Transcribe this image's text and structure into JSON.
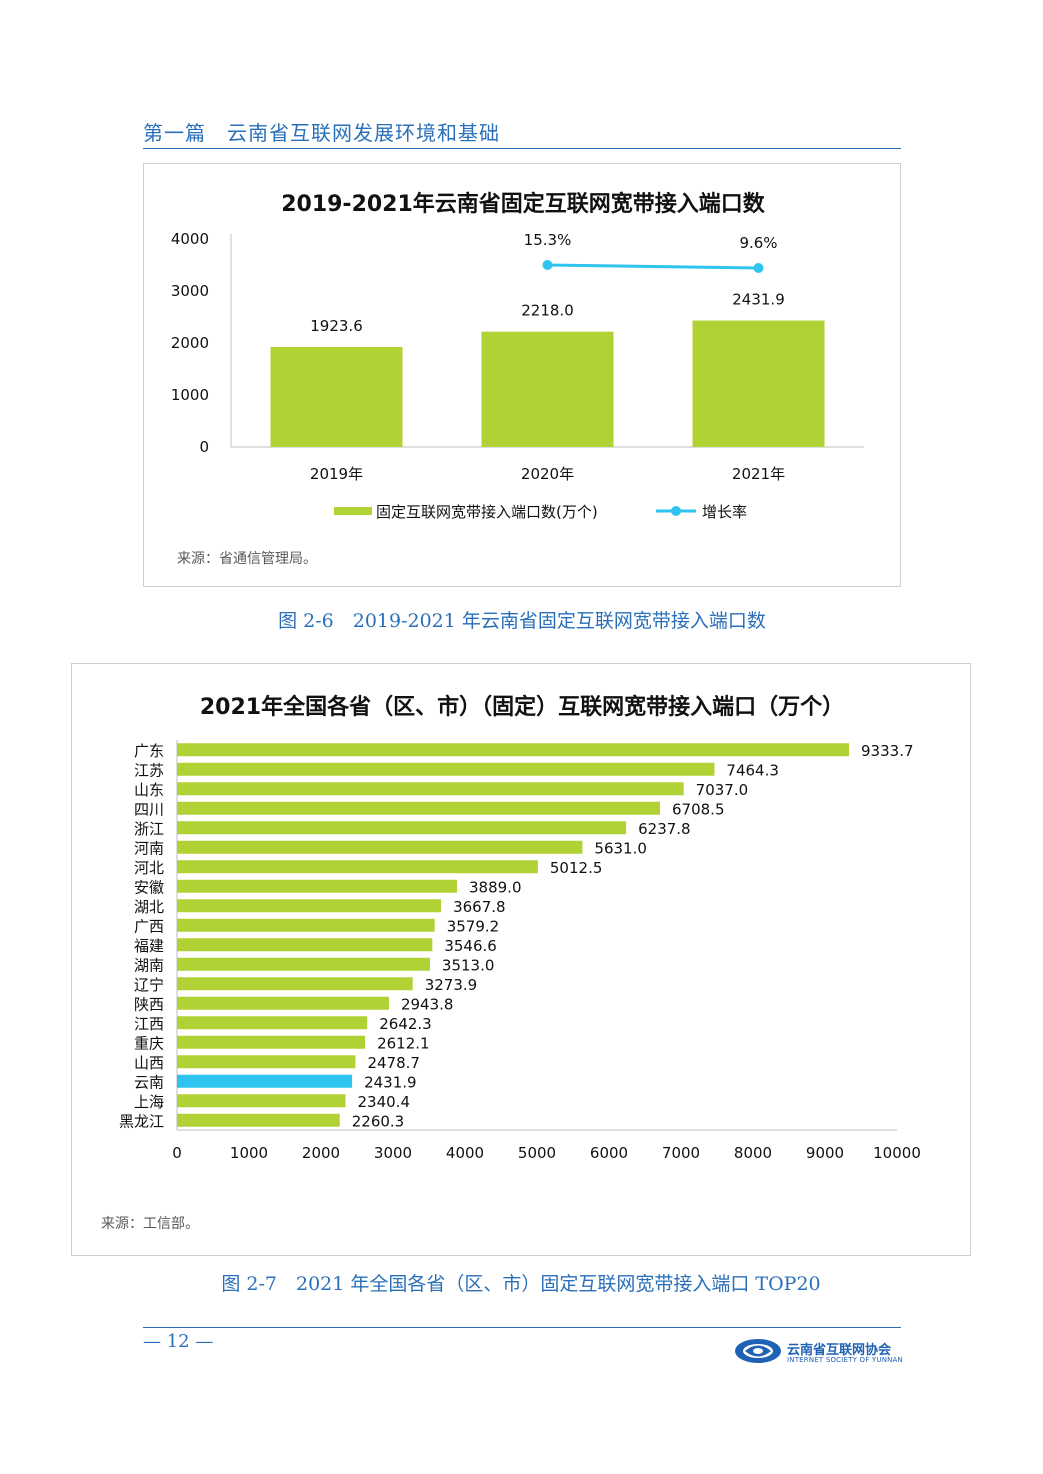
{
  "header": {
    "section_title": "第一篇　云南省互联网发展环境和基础"
  },
  "figure1": {
    "title": "2019-2021年云南省固定互联网宽带接入端口数",
    "source": "来源：省通信管理局。",
    "caption": "图 2-6　2019-2021 年云南省固定互联网宽带接入端口数",
    "chart_data": {
      "type": "bar",
      "categories": [
        "2019年",
        "2020年",
        "2021年"
      ],
      "series": [
        {
          "name": "固定互联网宽带接入端口数(万个)",
          "type": "bar",
          "values": [
            1923.6,
            2218.0,
            2431.9
          ],
          "labels": [
            "1923.6",
            "2218.0",
            "2431.9"
          ]
        },
        {
          "name": "增长率",
          "type": "line",
          "values": [
            null,
            15.3,
            9.6
          ],
          "labels": [
            "",
            "15.3%",
            "9.6%"
          ]
        }
      ],
      "ylim": [
        0,
        4000
      ],
      "yticks": [
        0,
        1000,
        2000,
        3000,
        4000
      ],
      "legend": "bottom",
      "colors": {
        "bar": "#b0d235",
        "line": "#2ec4ef"
      }
    }
  },
  "figure2": {
    "title": "2021年全国各省（区、市）（固定）互联网宽带接入端口（万个）",
    "source": "来源：工信部。",
    "caption": "图 2-7　2021 年全国各省（区、市）固定互联网宽带接入端口 TOP20",
    "chart_data": {
      "type": "bar",
      "orientation": "horizontal",
      "categories": [
        "广东",
        "江苏",
        "山东",
        "四川",
        "浙江",
        "河南",
        "河北",
        "安徽",
        "湖北",
        "广西",
        "福建",
        "湖南",
        "辽宁",
        "陕西",
        "江西",
        "重庆",
        "山西",
        "云南",
        "上海",
        "黑龙江"
      ],
      "values": [
        9333.7,
        7464.3,
        7037.0,
        6708.5,
        6237.8,
        5631.0,
        5012.5,
        3889.0,
        3667.8,
        3579.2,
        3546.6,
        3513.0,
        3273.9,
        2943.8,
        2642.3,
        2612.1,
        2478.7,
        2431.9,
        2340.4,
        2260.3
      ],
      "labels": [
        "9333.7",
        "7464.3",
        "7037.0",
        "6708.5",
        "6237.8",
        "5631.0",
        "5012.5",
        "3889.0",
        "3667.8",
        "3579.2",
        "3546.6",
        "3513.0",
        "3273.9",
        "2943.8",
        "2642.3",
        "2612.1",
        "2478.7",
        "2431.9",
        "2340.4",
        "2260.3"
      ],
      "highlight": "云南",
      "xlim": [
        0,
        10000
      ],
      "xticks": [
        0,
        1000,
        2000,
        3000,
        4000,
        5000,
        6000,
        7000,
        8000,
        9000,
        10000
      ],
      "colors": {
        "bar": "#b0d235",
        "highlight": "#2ec4ef"
      }
    }
  },
  "footer": {
    "page_number": "— 12 —",
    "logo_cn": "云南省互联网协会",
    "logo_en": "INTERNET SOCIETY OF YUNNAN"
  }
}
